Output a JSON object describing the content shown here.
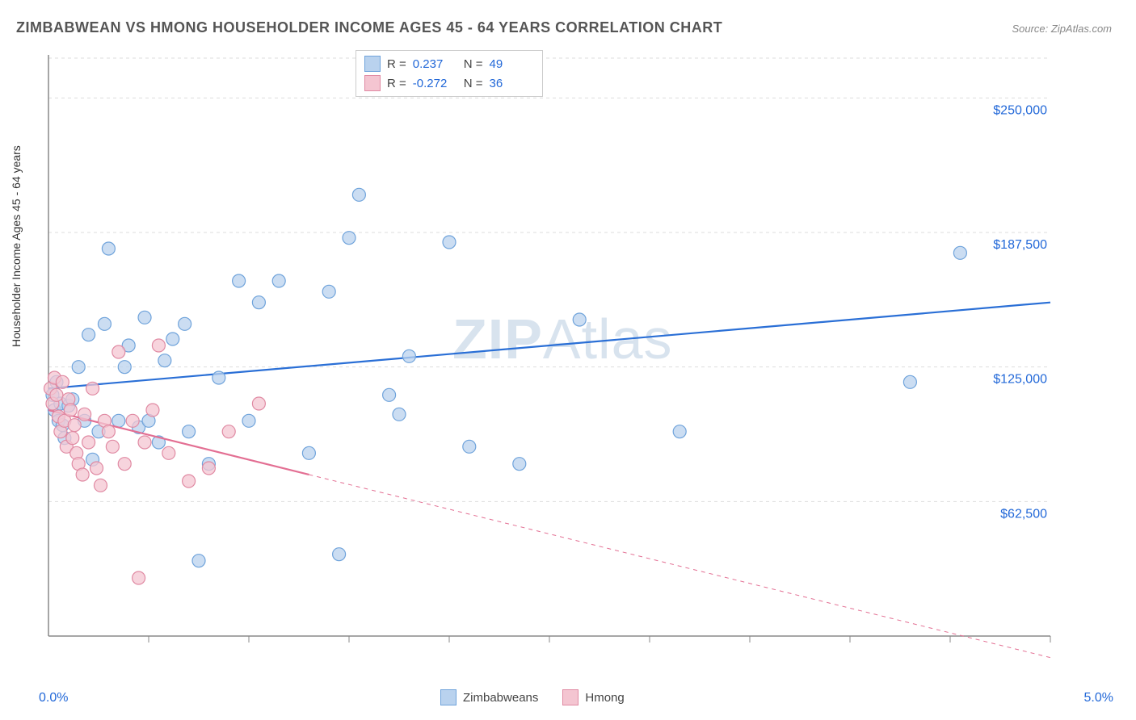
{
  "title": "ZIMBABWEAN VS HMONG HOUSEHOLDER INCOME AGES 45 - 64 YEARS CORRELATION CHART",
  "source": "Source: ZipAtlas.com",
  "ylabel": "Householder Income Ages 45 - 64 years",
  "watermark_bold": "ZIP",
  "watermark_rest": "Atlas",
  "chart": {
    "type": "scatter",
    "xaxis": {
      "min": 0.0,
      "max": 5.0,
      "label_min": "0.0%",
      "label_max": "5.0%",
      "tick_positions": [
        0.5,
        1.0,
        1.5,
        2.0,
        2.5,
        3.0,
        3.5,
        4.0,
        4.5,
        5.0
      ]
    },
    "yaxis": {
      "min": 0,
      "max": 270000,
      "ticks": [
        62500,
        125000,
        187500,
        250000
      ],
      "tick_labels": [
        "$62,500",
        "$125,000",
        "$187,500",
        "$250,000"
      ]
    },
    "grid_color": "#dddddd",
    "background": "#ffffff",
    "axis_color": "#888888",
    "tick_label_color": "#2268d8",
    "marker_radius": 8,
    "marker_stroke_width": 1.2,
    "line_width": 2.2,
    "series": [
      {
        "name": "Zimbabweans",
        "color_fill": "#b9d2ee",
        "color_stroke": "#6fa3db",
        "line_color": "#2a6fd6",
        "R": "0.237",
        "N": "49",
        "trend": {
          "x1": 0.0,
          "y1": 115000,
          "x2": 5.0,
          "y2": 155000,
          "dashed_from_x": 5.0
        },
        "points": [
          [
            0.02,
            112000
          ],
          [
            0.03,
            105000
          ],
          [
            0.04,
            118000
          ],
          [
            0.05,
            100000
          ],
          [
            0.06,
            108000
          ],
          [
            0.07,
            98000
          ],
          [
            0.08,
            92000
          ],
          [
            0.1,
            107000
          ],
          [
            0.12,
            110000
          ],
          [
            0.15,
            125000
          ],
          [
            0.18,
            100000
          ],
          [
            0.2,
            140000
          ],
          [
            0.22,
            82000
          ],
          [
            0.25,
            95000
          ],
          [
            0.28,
            145000
          ],
          [
            0.3,
            180000
          ],
          [
            0.35,
            100000
          ],
          [
            0.38,
            125000
          ],
          [
            0.4,
            135000
          ],
          [
            0.45,
            97000
          ],
          [
            0.48,
            148000
          ],
          [
            0.5,
            100000
          ],
          [
            0.55,
            90000
          ],
          [
            0.58,
            128000
          ],
          [
            0.62,
            138000
          ],
          [
            0.68,
            145000
          ],
          [
            0.7,
            95000
          ],
          [
            0.75,
            35000
          ],
          [
            0.8,
            80000
          ],
          [
            0.85,
            120000
          ],
          [
            0.95,
            165000
          ],
          [
            1.0,
            100000
          ],
          [
            1.05,
            155000
          ],
          [
            1.15,
            165000
          ],
          [
            1.3,
            85000
          ],
          [
            1.4,
            160000
          ],
          [
            1.45,
            38000
          ],
          [
            1.5,
            185000
          ],
          [
            1.55,
            205000
          ],
          [
            1.7,
            112000
          ],
          [
            1.75,
            103000
          ],
          [
            1.8,
            130000
          ],
          [
            2.0,
            183000
          ],
          [
            2.1,
            88000
          ],
          [
            2.35,
            80000
          ],
          [
            2.65,
            147000
          ],
          [
            3.15,
            95000
          ],
          [
            4.3,
            118000
          ],
          [
            4.55,
            178000
          ]
        ]
      },
      {
        "name": "Hmong",
        "color_fill": "#f4c5d1",
        "color_stroke": "#e08aa3",
        "line_color": "#e36f93",
        "R": "-0.272",
        "N": "36",
        "trend": {
          "x1": 0.0,
          "y1": 105000,
          "x2": 1.3,
          "y2": 75000,
          "dashed_to_x": 5.0,
          "dashed_to_y": -10000
        },
        "points": [
          [
            0.01,
            115000
          ],
          [
            0.02,
            108000
          ],
          [
            0.03,
            120000
          ],
          [
            0.04,
            112000
          ],
          [
            0.05,
            102000
          ],
          [
            0.06,
            95000
          ],
          [
            0.07,
            118000
          ],
          [
            0.08,
            100000
          ],
          [
            0.09,
            88000
          ],
          [
            0.1,
            110000
          ],
          [
            0.11,
            105000
          ],
          [
            0.12,
            92000
          ],
          [
            0.13,
            98000
          ],
          [
            0.14,
            85000
          ],
          [
            0.15,
            80000
          ],
          [
            0.17,
            75000
          ],
          [
            0.18,
            103000
          ],
          [
            0.2,
            90000
          ],
          [
            0.22,
            115000
          ],
          [
            0.24,
            78000
          ],
          [
            0.26,
            70000
          ],
          [
            0.28,
            100000
          ],
          [
            0.3,
            95000
          ],
          [
            0.32,
            88000
          ],
          [
            0.35,
            132000
          ],
          [
            0.38,
            80000
          ],
          [
            0.42,
            100000
          ],
          [
            0.45,
            27000
          ],
          [
            0.48,
            90000
          ],
          [
            0.52,
            105000
          ],
          [
            0.55,
            135000
          ],
          [
            0.6,
            85000
          ],
          [
            0.7,
            72000
          ],
          [
            0.8,
            78000
          ],
          [
            0.9,
            95000
          ],
          [
            1.05,
            108000
          ]
        ]
      }
    ],
    "stat_legend": {
      "R_label": "R =",
      "N_label": "N ="
    }
  }
}
